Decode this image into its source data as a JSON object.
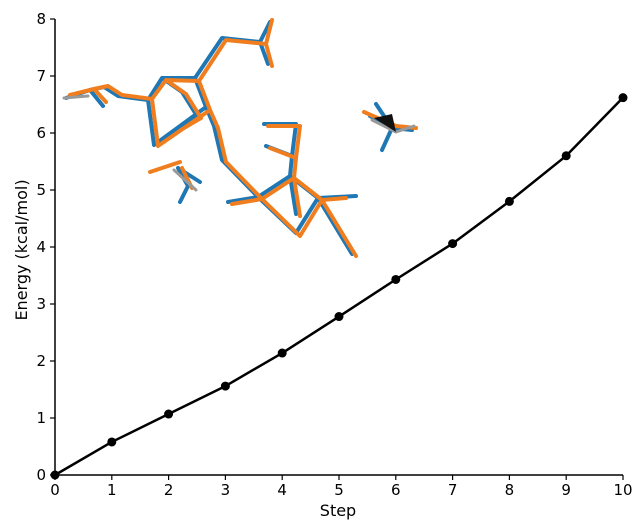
{
  "chart_data": {
    "type": "line",
    "xlabel": "Step",
    "ylabel": "Energy (kcal/mol)",
    "xlim": [
      0,
      10
    ],
    "ylim": [
      0,
      8
    ],
    "x_ticks": [
      "0",
      "1",
      "2",
      "3",
      "4",
      "5",
      "6",
      "7",
      "8",
      "9",
      "10"
    ],
    "y_ticks": [
      "0",
      "1",
      "2",
      "3",
      "4",
      "5",
      "6",
      "7",
      "8"
    ],
    "series": [
      {
        "x": [
          0,
          1,
          2,
          3,
          4,
          5,
          6,
          7,
          8,
          9,
          10
        ],
        "y": [
          0,
          0.58,
          1.07,
          1.56,
          2.14,
          2.78,
          3.43,
          4.06,
          4.8,
          5.6,
          6.62
        ],
        "color": "#000000",
        "marker": "circle"
      }
    ],
    "grid": false,
    "inset": "overlay of two molecular structures (blue and orange stick models)",
    "inset_colors": [
      "#1f77b4",
      "#f07d1e"
    ]
  }
}
